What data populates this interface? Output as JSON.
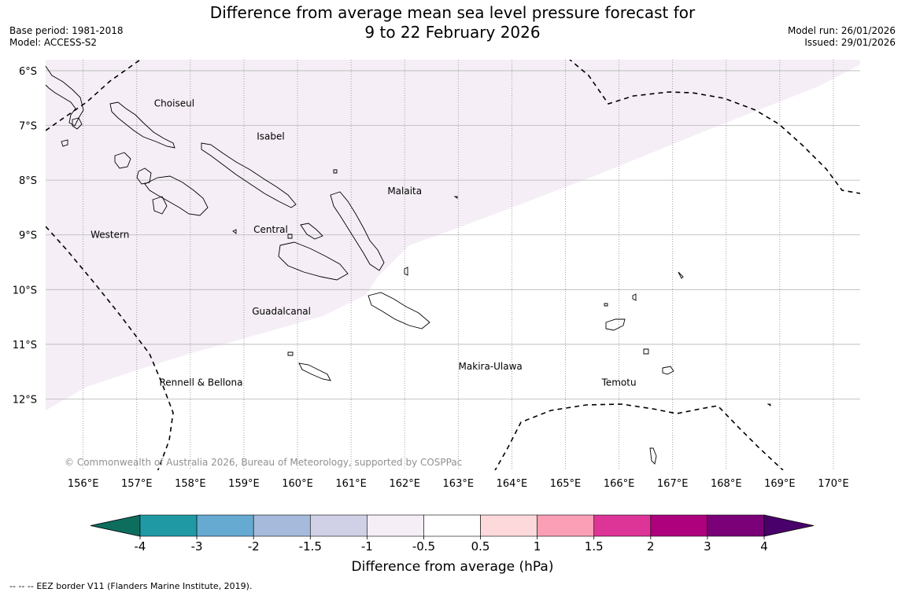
{
  "title": {
    "line1": "Difference from average mean sea level pressure forecast for",
    "line2": "9 to 22 February 2026"
  },
  "meta_left": {
    "base_period": "Base period: 1981-2018",
    "model": "Model: ACCESS-S2"
  },
  "meta_right": {
    "model_run": "Model run: 26/01/2026",
    "issued": "Issued: 29/01/2026"
  },
  "map": {
    "lat_labels": [
      "6°S",
      "7°S",
      "8°S",
      "9°S",
      "10°S",
      "11°S",
      "12°S"
    ],
    "lon_labels": [
      "156°E",
      "157°E",
      "158°E",
      "159°E",
      "160°E",
      "161°E",
      "162°E",
      "163°E",
      "164°E",
      "165°E",
      "166°E",
      "167°E",
      "168°E",
      "169°E",
      "170°E"
    ],
    "lat_values": [
      -6,
      -7,
      -8,
      -9,
      -10,
      -11,
      -12
    ],
    "lon_values": [
      156,
      157,
      158,
      159,
      160,
      161,
      162,
      163,
      164,
      165,
      166,
      167,
      168,
      169,
      170
    ],
    "extent": {
      "lon_min": 155.3,
      "lon_max": 170.5,
      "lat_max": -5.8,
      "lat_min": -13.3
    },
    "province_labels": [
      {
        "name": "Choiseul",
        "lon": 157.7,
        "lat": -6.6
      },
      {
        "name": "Isabel",
        "lon": 159.5,
        "lat": -7.2
      },
      {
        "name": "Malaita",
        "lon": 162.0,
        "lat": -8.2
      },
      {
        "name": "Western",
        "lon": 156.5,
        "lat": -9.0
      },
      {
        "name": "Central",
        "lon": 159.5,
        "lat": -8.9
      },
      {
        "name": "Guadalcanal",
        "lon": 159.7,
        "lat": -10.4
      },
      {
        "name": "Makira-Ulawa",
        "lon": 163.6,
        "lat": -11.4
      },
      {
        "name": "Temotu",
        "lon": 166.0,
        "lat": -11.7
      },
      {
        "name": "Rennell & Bellona",
        "lon": 158.2,
        "lat": -11.7
      }
    ],
    "anomaly_region": {
      "category": "-1 to -0.5",
      "color": "#f5eef6"
    },
    "copyright": "© Commonwealth of Australia 2026, Bureau of Meteorology, supported by COSPPac"
  },
  "colorbar": {
    "colors": [
      "#0d6e5e",
      "#1f9aa5",
      "#66aad2",
      "#a6bbdb",
      "#d0d1e6",
      "#f5eef6",
      "#ffffff",
      "#fdd9db",
      "#fa9fb5",
      "#dd3497",
      "#ae017e",
      "#7a0177",
      "#49006a"
    ],
    "tick_labels": [
      "-4",
      "-3",
      "-2",
      "-1.5",
      "-1",
      "-0.5",
      "0.5",
      "1",
      "1.5",
      "2",
      "3",
      "4"
    ],
    "label": "Difference from average (hPa)"
  },
  "footer": {
    "legend_marker": "--  --  --",
    "legend_text": "EEZ border V11 (Flanders Marine Institute, 2019)."
  }
}
